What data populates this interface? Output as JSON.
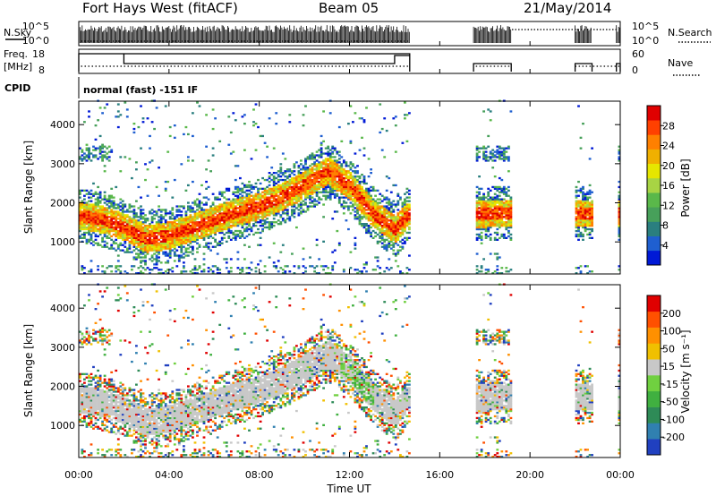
{
  "header": {
    "title": "Fort Hays West (fitACF)",
    "beam": "Beam 05",
    "date": "21/May/2014"
  },
  "panels": {
    "nsky": {
      "label": "N.Sky",
      "right_label": "N.Search",
      "left_ticks": [
        "10^5",
        "10^0"
      ],
      "right_ticks": [
        "10^5",
        "10^0"
      ]
    },
    "freq": {
      "label_line1": "Freq.",
      "label_line2": "[MHz]",
      "right_label": "Nave",
      "left_ticks": [
        "18",
        "8"
      ],
      "right_ticks": [
        "60",
        "0"
      ]
    },
    "cpid": {
      "label": "CPID",
      "value": "normal (fast) -151 IF"
    }
  },
  "colorbars": {
    "power": {
      "label": "Power [dB]",
      "ticks": [
        "28",
        "24",
        "20",
        "16",
        "12",
        "8",
        "4"
      ],
      "colors": [
        "#0019d6",
        "#1f5fd0",
        "#2a7f7f",
        "#47a05a",
        "#5ab84a",
        "#a8d444",
        "#e6e600",
        "#f0b000",
        "#ff8000",
        "#ff4000",
        "#e00000"
      ]
    },
    "velocity": {
      "label": "Velocity [m s⁻¹]",
      "ticks": [
        "200",
        "100",
        "50",
        "15",
        "-15",
        "-50",
        "-100",
        "-200"
      ],
      "colors": [
        "#2040c0",
        "#3080b0",
        "#2e8b57",
        "#40b040",
        "#70d040",
        "#c8c8c8",
        "#f0c000",
        "#ff9000",
        "#ff5000",
        "#e00000"
      ]
    }
  },
  "chart_data": [
    {
      "type": "heatmap",
      "title": "",
      "quantity": "Power",
      "ylabel": "Slant Range [km]",
      "xlabel": "",
      "y_ticks": [
        "4000",
        "3000",
        "2000",
        "1000"
      ],
      "ylim": [
        180,
        4600
      ],
      "xlim": [
        "00:00",
        "24:00"
      ],
      "clim": [
        0,
        30
      ],
      "colorbar_label": "Power [dB]",
      "data_gaps_ut": [
        [
          "14:40",
          "17:30"
        ],
        [
          "19:10",
          "22:00"
        ],
        [
          "22:45",
          "23:50"
        ]
      ],
      "band_center_km": [
        {
          "t": "00:00",
          "r": 1650
        },
        {
          "t": "01:00",
          "r": 1550
        },
        {
          "t": "02:00",
          "r": 1350
        },
        {
          "t": "03:00",
          "r": 1050
        },
        {
          "t": "04:00",
          "r": 1150
        },
        {
          "t": "05:00",
          "r": 1350
        },
        {
          "t": "06:00",
          "r": 1550
        },
        {
          "t": "07:00",
          "r": 1750
        },
        {
          "t": "08:00",
          "r": 1900
        },
        {
          "t": "09:00",
          "r": 2150
        },
        {
          "t": "10:00",
          "r": 2450
        },
        {
          "t": "11:00",
          "r": 2800
        },
        {
          "t": "12:00",
          "r": 2400
        },
        {
          "t": "13:00",
          "r": 1700
        },
        {
          "t": "14:00",
          "r": 1300
        },
        {
          "t": "14:30",
          "r": 1650
        },
        {
          "t": "18:00",
          "r": 1700
        },
        {
          "t": "22:30",
          "r": 1700
        },
        {
          "t": "24:00",
          "r": 1700
        }
      ]
    },
    {
      "type": "heatmap",
      "title": "",
      "quantity": "Velocity",
      "ylabel": "Slant Range [km]",
      "xlabel": "Time UT",
      "y_ticks": [
        "4000",
        "3000",
        "2000",
        "1000"
      ],
      "x_ticks": [
        "00:00",
        "04:00",
        "08:00",
        "12:00",
        "16:00",
        "20:00",
        "00:00"
      ],
      "ylim": [
        180,
        4600
      ],
      "xlim": [
        "00:00",
        "24:00"
      ],
      "clim": [
        -200,
        200
      ],
      "colorbar_label": "Velocity [m s⁻¹]"
    }
  ]
}
